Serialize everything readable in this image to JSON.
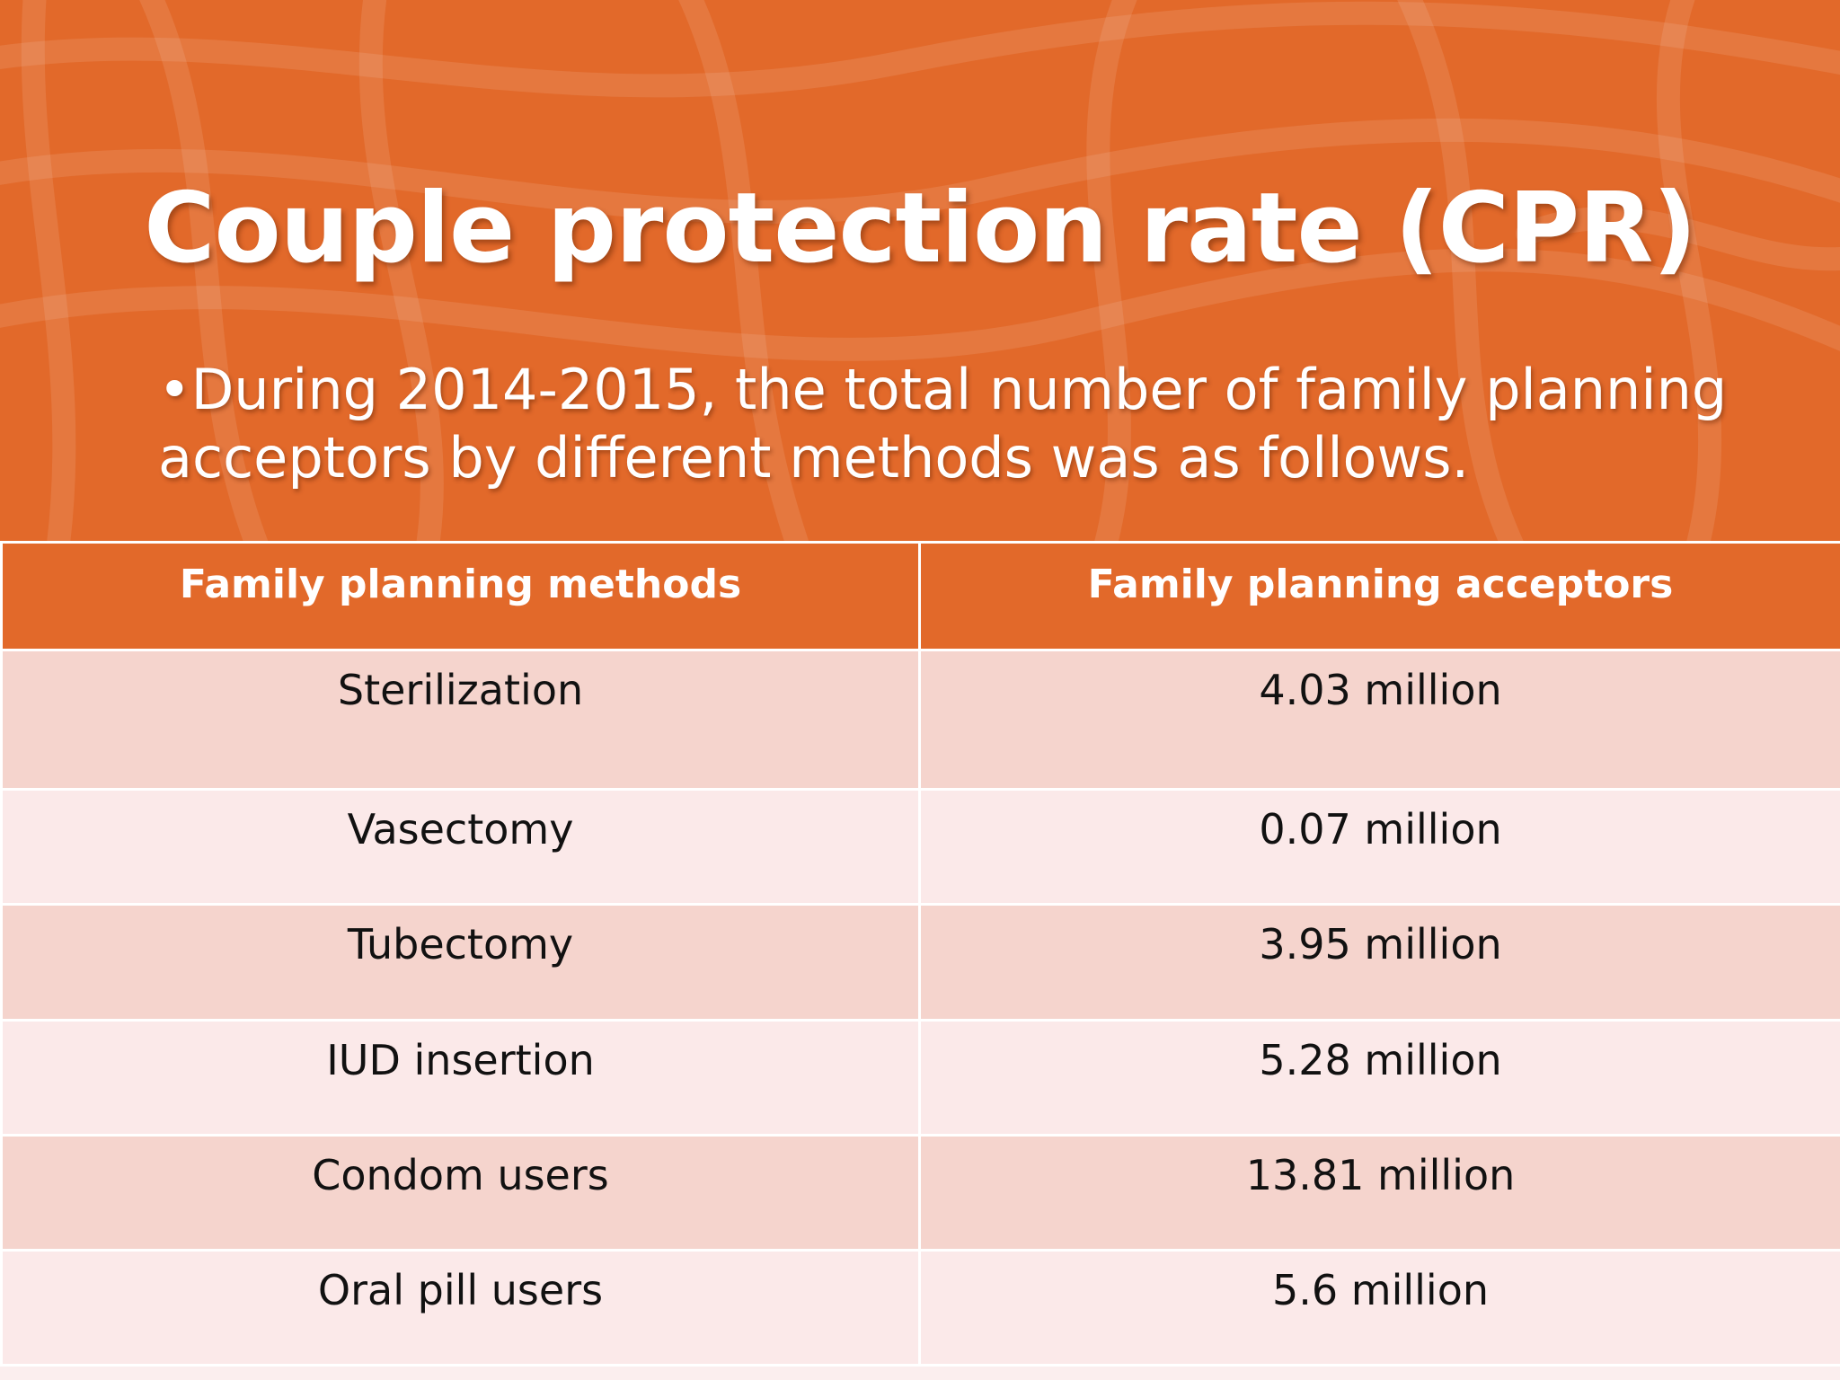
{
  "slide": {
    "title": "Couple protection rate (CPR)",
    "subtitle": "•During 2014-2015, the total number of family planning acceptors by different methods was as follows."
  },
  "table": {
    "headers": [
      "Family planning methods",
      "Family planning acceptors"
    ],
    "rows": [
      [
        "Sterilization",
        "4.03 million"
      ],
      [
        "Vasectomy",
        "0.07 million"
      ],
      [
        "Tubectomy",
        "3.95 million"
      ],
      [
        "IUD insertion",
        "5.28 million"
      ],
      [
        "Condom users",
        "13.81 million"
      ],
      [
        "Oral pill users",
        "5.6 million"
      ]
    ]
  },
  "colors": {
    "banner": "#e2692a",
    "row_dark": "#f5d4cd",
    "row_light": "#fbe9e9",
    "text_light": "#ffffff",
    "text_dark": "#111111"
  }
}
